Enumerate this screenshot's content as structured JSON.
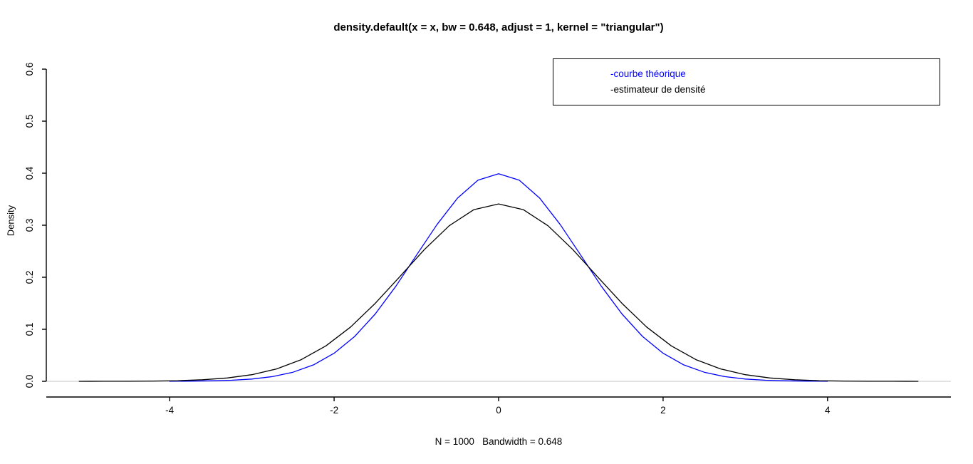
{
  "chart_data": {
    "type": "line",
    "title": "density.default(x = x, bw = 0.648, adjust = 1, kernel = \"triangular\")",
    "xlabel": "N = 1000   Bandwidth = 0.648",
    "ylabel": "Density",
    "xlim": [
      -5.5,
      5.5
    ],
    "ylim": [
      0,
      0.6
    ],
    "grid": false,
    "axis_color": "#000000",
    "baseline": {
      "y": 0,
      "color": "#d9d9d9"
    },
    "x_ticks": {
      "values": [
        -4,
        -2,
        0,
        2,
        4
      ],
      "labels": [
        "-4",
        "-2",
        "0",
        "2",
        "4"
      ]
    },
    "y_ticks": {
      "values": [
        0,
        0.1,
        0.2,
        0.3,
        0.4,
        0.5,
        0.6
      ],
      "labels": [
        "0.0",
        "0.1",
        "0.2",
        "0.3",
        "0.4",
        "0.5",
        "0.6"
      ]
    },
    "legend": {
      "position": "top-right",
      "items": [
        {
          "label": "-courbe théorique",
          "color": "#0000ff"
        },
        {
          "label": "-estimateur de densité",
          "color": "#000000"
        }
      ]
    },
    "series": [
      {
        "name": "courbe théorique",
        "color": "#0000ff",
        "x": [
          -4,
          -3.75,
          -3.5,
          -3.25,
          -3,
          -2.75,
          -2.5,
          -2.25,
          -2,
          -1.75,
          -1.5,
          -1.25,
          -1,
          -0.75,
          -0.5,
          -0.25,
          0,
          0.25,
          0.5,
          0.75,
          1,
          1.25,
          1.5,
          1.75,
          2,
          2.25,
          2.5,
          2.75,
          3,
          3.25,
          3.5,
          3.75,
          4
        ],
        "y": [
          0.0001,
          0.0004,
          0.0009,
          0.002,
          0.0044,
          0.0091,
          0.0175,
          0.0317,
          0.054,
          0.0863,
          0.1295,
          0.1826,
          0.242,
          0.3011,
          0.3521,
          0.3867,
          0.3989,
          0.3867,
          0.3521,
          0.3011,
          0.242,
          0.1826,
          0.1295,
          0.0863,
          0.054,
          0.0317,
          0.0175,
          0.0091,
          0.0044,
          0.002,
          0.0009,
          0.0004,
          0.0001
        ]
      },
      {
        "name": "estimateur de densité",
        "color": "#000000",
        "x": [
          -5.1,
          -4.8,
          -4.5,
          -4.2,
          -3.9,
          -3.6,
          -3.3,
          -3,
          -2.7,
          -2.4,
          -2.1,
          -1.8,
          -1.5,
          -1.2,
          -0.9,
          -0.6,
          -0.3,
          0,
          0.3,
          0.6,
          0.9,
          1.2,
          1.5,
          1.8,
          2.1,
          2.4,
          2.7,
          3,
          3.3,
          3.6,
          3.9,
          4.2,
          4.5,
          4.8,
          5.1
        ],
        "y": [
          0,
          0.0001,
          0.0002,
          0.0005,
          0.0013,
          0.003,
          0.0064,
          0.0127,
          0.0238,
          0.0416,
          0.0681,
          0.1044,
          0.1499,
          0.2015,
          0.2537,
          0.299,
          0.33,
          0.341,
          0.33,
          0.299,
          0.2537,
          0.2015,
          0.1499,
          0.1044,
          0.0681,
          0.0416,
          0.0238,
          0.0127,
          0.0064,
          0.003,
          0.0013,
          0.0005,
          0.0002,
          0.0001,
          0
        ]
      }
    ]
  }
}
